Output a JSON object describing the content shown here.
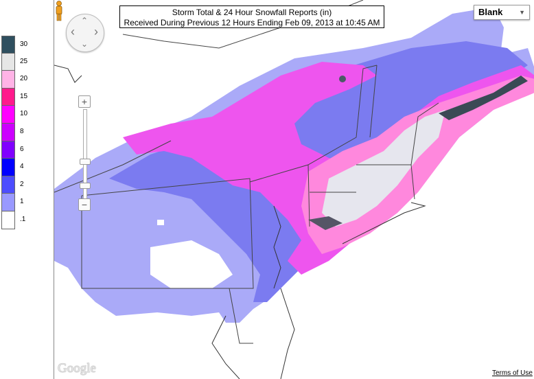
{
  "title": {
    "line1": "Storm Total & 24 Hour Snowfall Reports (in)",
    "line2": "Received During Previous 12 Hours Ending Feb 09, 2013 at 10:45 AM"
  },
  "legend": [
    {
      "label": "30",
      "color": "#2f4f5f"
    },
    {
      "label": "25",
      "color": "#e6e6e6"
    },
    {
      "label": "20",
      "color": "#ffb3e6"
    },
    {
      "label": "15",
      "color": "#ff1a8c"
    },
    {
      "label": "10",
      "color": "#ff00ff"
    },
    {
      "label": "8",
      "color": "#cc00ff"
    },
    {
      "label": "6",
      "color": "#8000ff"
    },
    {
      "label": "4",
      "color": "#0000ff"
    },
    {
      "label": "2",
      "color": "#4d4dff"
    },
    {
      "label": "1",
      "color": "#9999ff"
    },
    {
      "label": ".1",
      "color": "#ffffff"
    }
  ],
  "map_type": {
    "selected": "Blank"
  },
  "attribution": {
    "logo": "Google",
    "terms": "Terms of Use"
  },
  "zoom": {
    "plus": "+",
    "minus": "−"
  },
  "nav": {
    "up": "⌃",
    "down": "⌄",
    "left": "‹",
    "right": "›"
  }
}
